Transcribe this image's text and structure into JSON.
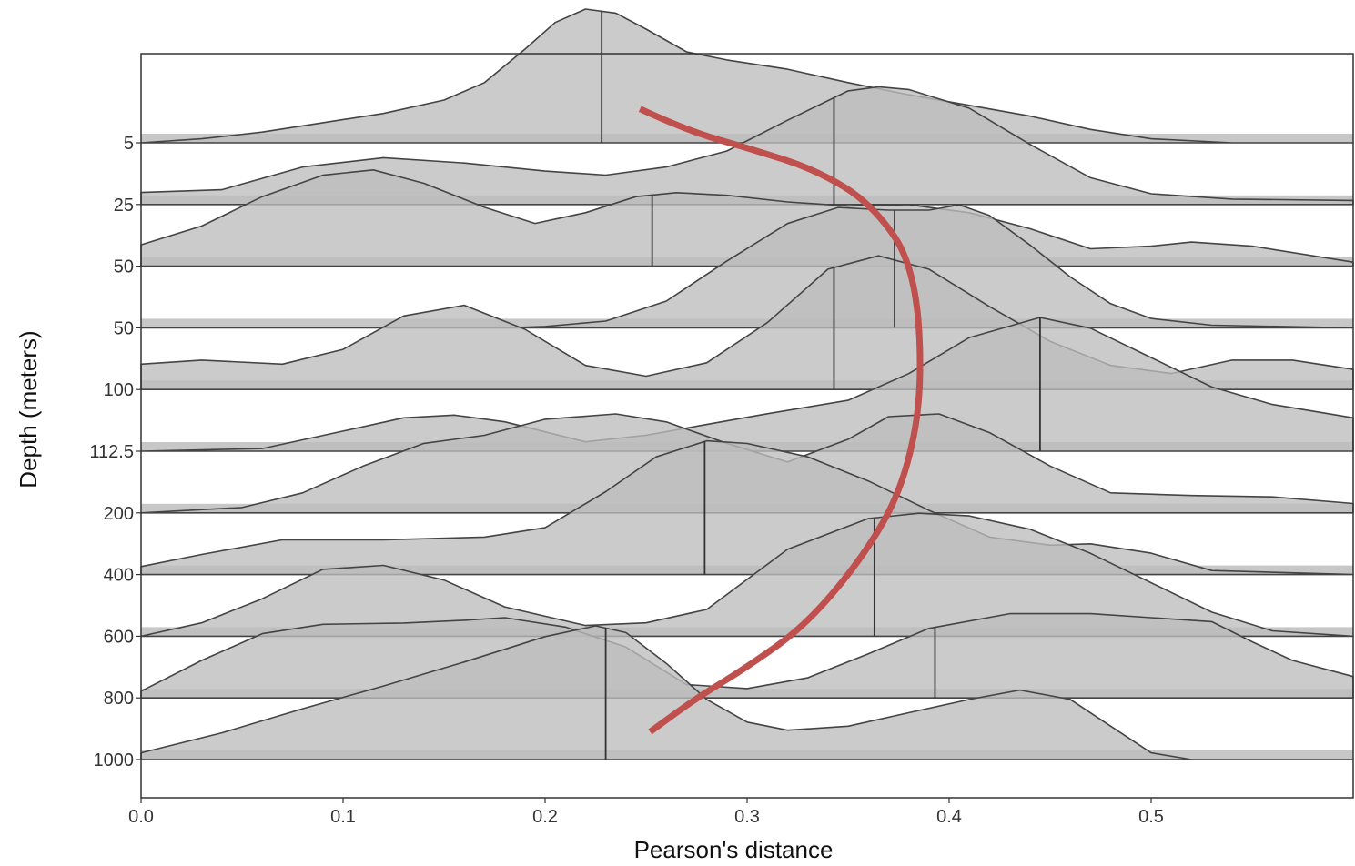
{
  "chart_data": {
    "type": "ridgeline",
    "xlabel": "Pearson's distance",
    "ylabel": "Depth (meters)",
    "xlim": [
      0.0,
      0.6
    ],
    "x_ticks": [
      "0.0",
      "0.1",
      "0.2",
      "0.3",
      "0.4",
      "0.5"
    ],
    "x_tick_values": [
      0.0,
      0.1,
      0.2,
      0.3,
      0.4,
      0.5
    ],
    "grid": false,
    "colors": {
      "fill": "#bdbdbd",
      "outline": "#444444",
      "trend": "#c0504d",
      "frame": "#333333"
    },
    "rows": [
      {
        "depth": "5",
        "median": 0.228,
        "density": [
          [
            0,
            0.0
          ],
          [
            0.03,
            0.03
          ],
          [
            0.06,
            0.08
          ],
          [
            0.09,
            0.15
          ],
          [
            0.12,
            0.22
          ],
          [
            0.15,
            0.32
          ],
          [
            0.17,
            0.45
          ],
          [
            0.19,
            0.7
          ],
          [
            0.205,
            0.9
          ],
          [
            0.22,
            1.0
          ],
          [
            0.235,
            0.97
          ],
          [
            0.25,
            0.85
          ],
          [
            0.27,
            0.68
          ],
          [
            0.29,
            0.62
          ],
          [
            0.32,
            0.55
          ],
          [
            0.35,
            0.45
          ],
          [
            0.38,
            0.36
          ],
          [
            0.41,
            0.28
          ],
          [
            0.44,
            0.2
          ],
          [
            0.47,
            0.1
          ],
          [
            0.5,
            0.03
          ],
          [
            0.54,
            0.0
          ],
          [
            0.6,
            0.0
          ]
        ]
      },
      {
        "depth": "25",
        "median": 0.343,
        "density": [
          [
            0,
            0.09
          ],
          [
            0.04,
            0.11
          ],
          [
            0.08,
            0.28
          ],
          [
            0.12,
            0.35
          ],
          [
            0.16,
            0.31
          ],
          [
            0.2,
            0.25
          ],
          [
            0.23,
            0.22
          ],
          [
            0.26,
            0.28
          ],
          [
            0.29,
            0.4
          ],
          [
            0.32,
            0.63
          ],
          [
            0.35,
            0.85
          ],
          [
            0.365,
            0.88
          ],
          [
            0.38,
            0.86
          ],
          [
            0.41,
            0.72
          ],
          [
            0.44,
            0.45
          ],
          [
            0.47,
            0.2
          ],
          [
            0.5,
            0.08
          ],
          [
            0.54,
            0.04
          ],
          [
            0.6,
            0.03
          ]
        ]
      },
      {
        "depth": "50",
        "median": 0.253,
        "density": [
          [
            0,
            0.16
          ],
          [
            0.03,
            0.3
          ],
          [
            0.06,
            0.52
          ],
          [
            0.09,
            0.68
          ],
          [
            0.115,
            0.72
          ],
          [
            0.14,
            0.62
          ],
          [
            0.17,
            0.44
          ],
          [
            0.195,
            0.32
          ],
          [
            0.22,
            0.4
          ],
          [
            0.245,
            0.52
          ],
          [
            0.265,
            0.55
          ],
          [
            0.29,
            0.53
          ],
          [
            0.32,
            0.48
          ],
          [
            0.35,
            0.45
          ],
          [
            0.38,
            0.46
          ],
          [
            0.41,
            0.4
          ],
          [
            0.44,
            0.28
          ],
          [
            0.47,
            0.13
          ],
          [
            0.5,
            0.15
          ],
          [
            0.52,
            0.18
          ],
          [
            0.55,
            0.15
          ],
          [
            0.6,
            0.03
          ]
        ]
      },
      {
        "depth": "50",
        "median": 0.373,
        "density": [
          [
            0,
            0.0
          ],
          [
            0.18,
            0.0
          ],
          [
            0.2,
            0.01
          ],
          [
            0.23,
            0.05
          ],
          [
            0.26,
            0.2
          ],
          [
            0.29,
            0.5
          ],
          [
            0.32,
            0.78
          ],
          [
            0.345,
            0.9
          ],
          [
            0.37,
            0.88
          ],
          [
            0.39,
            0.88
          ],
          [
            0.405,
            0.92
          ],
          [
            0.42,
            0.84
          ],
          [
            0.44,
            0.62
          ],
          [
            0.46,
            0.38
          ],
          [
            0.48,
            0.18
          ],
          [
            0.5,
            0.07
          ],
          [
            0.53,
            0.02
          ],
          [
            0.6,
            0.0
          ]
        ]
      },
      {
        "depth": "100",
        "median": 0.343,
        "density": [
          [
            0,
            0.19
          ],
          [
            0.03,
            0.22
          ],
          [
            0.07,
            0.19
          ],
          [
            0.1,
            0.3
          ],
          [
            0.13,
            0.55
          ],
          [
            0.16,
            0.63
          ],
          [
            0.19,
            0.45
          ],
          [
            0.22,
            0.18
          ],
          [
            0.25,
            0.1
          ],
          [
            0.28,
            0.2
          ],
          [
            0.31,
            0.5
          ],
          [
            0.34,
            0.9
          ],
          [
            0.365,
            1.0
          ],
          [
            0.39,
            0.9
          ],
          [
            0.42,
            0.62
          ],
          [
            0.45,
            0.36
          ],
          [
            0.48,
            0.18
          ],
          [
            0.51,
            0.12
          ],
          [
            0.54,
            0.22
          ],
          [
            0.57,
            0.22
          ],
          [
            0.6,
            0.15
          ]
        ]
      },
      {
        "depth": "112.5",
        "median": 0.445,
        "density": [
          [
            0,
            0.0
          ],
          [
            0.06,
            0.02
          ],
          [
            0.1,
            0.15
          ],
          [
            0.13,
            0.25
          ],
          [
            0.155,
            0.27
          ],
          [
            0.18,
            0.22
          ],
          [
            0.22,
            0.07
          ],
          [
            0.25,
            0.12
          ],
          [
            0.28,
            0.2
          ],
          [
            0.31,
            0.28
          ],
          [
            0.35,
            0.38
          ],
          [
            0.38,
            0.58
          ],
          [
            0.41,
            0.85
          ],
          [
            0.445,
            1.0
          ],
          [
            0.47,
            0.92
          ],
          [
            0.5,
            0.7
          ],
          [
            0.53,
            0.48
          ],
          [
            0.56,
            0.35
          ],
          [
            0.6,
            0.25
          ]
        ]
      },
      {
        "depth": "200",
        "median": null,
        "density": [
          [
            0,
            0.0
          ],
          [
            0.05,
            0.04
          ],
          [
            0.08,
            0.15
          ],
          [
            0.11,
            0.35
          ],
          [
            0.14,
            0.52
          ],
          [
            0.17,
            0.58
          ],
          [
            0.2,
            0.7
          ],
          [
            0.235,
            0.74
          ],
          [
            0.26,
            0.68
          ],
          [
            0.29,
            0.52
          ],
          [
            0.32,
            0.38
          ],
          [
            0.35,
            0.55
          ],
          [
            0.37,
            0.72
          ],
          [
            0.395,
            0.74
          ],
          [
            0.42,
            0.6
          ],
          [
            0.45,
            0.35
          ],
          [
            0.48,
            0.15
          ],
          [
            0.52,
            0.13
          ],
          [
            0.56,
            0.12
          ],
          [
            0.6,
            0.07
          ]
        ]
      },
      {
        "depth": "400",
        "median": 0.279,
        "density": [
          [
            0,
            0.06
          ],
          [
            0.03,
            0.15
          ],
          [
            0.07,
            0.26
          ],
          [
            0.12,
            0.26
          ],
          [
            0.17,
            0.28
          ],
          [
            0.2,
            0.35
          ],
          [
            0.23,
            0.62
          ],
          [
            0.255,
            0.88
          ],
          [
            0.28,
            1.0
          ],
          [
            0.3,
            0.98
          ],
          [
            0.33,
            0.88
          ],
          [
            0.36,
            0.7
          ],
          [
            0.39,
            0.48
          ],
          [
            0.42,
            0.28
          ],
          [
            0.45,
            0.22
          ],
          [
            0.47,
            0.23
          ],
          [
            0.5,
            0.16
          ],
          [
            0.53,
            0.03
          ],
          [
            0.6,
            0.0
          ]
        ]
      },
      {
        "depth": "600",
        "median": 0.363,
        "density": [
          [
            0,
            0.0
          ],
          [
            0.03,
            0.1
          ],
          [
            0.06,
            0.28
          ],
          [
            0.09,
            0.5
          ],
          [
            0.12,
            0.53
          ],
          [
            0.15,
            0.42
          ],
          [
            0.18,
            0.22
          ],
          [
            0.22,
            0.08
          ],
          [
            0.25,
            0.1
          ],
          [
            0.28,
            0.2
          ],
          [
            0.32,
            0.65
          ],
          [
            0.36,
            0.88
          ],
          [
            0.385,
            0.92
          ],
          [
            0.41,
            0.9
          ],
          [
            0.44,
            0.8
          ],
          [
            0.47,
            0.62
          ],
          [
            0.5,
            0.4
          ],
          [
            0.53,
            0.18
          ],
          [
            0.56,
            0.04
          ],
          [
            0.6,
            0.0
          ]
        ]
      },
      {
        "depth": "800",
        "median": 0.393,
        "density": [
          [
            0,
            0.05
          ],
          [
            0.03,
            0.28
          ],
          [
            0.06,
            0.48
          ],
          [
            0.09,
            0.55
          ],
          [
            0.13,
            0.56
          ],
          [
            0.16,
            0.58
          ],
          [
            0.18,
            0.6
          ],
          [
            0.21,
            0.53
          ],
          [
            0.24,
            0.38
          ],
          [
            0.27,
            0.1
          ],
          [
            0.3,
            0.07
          ],
          [
            0.33,
            0.15
          ],
          [
            0.36,
            0.33
          ],
          [
            0.39,
            0.52
          ],
          [
            0.43,
            0.63
          ],
          [
            0.47,
            0.63
          ],
          [
            0.5,
            0.6
          ],
          [
            0.53,
            0.57
          ],
          [
            0.55,
            0.42
          ],
          [
            0.57,
            0.28
          ],
          [
            0.6,
            0.16
          ]
        ]
      },
      {
        "depth": "1000",
        "median": 0.23,
        "density": [
          [
            0,
            0.05
          ],
          [
            0.04,
            0.2
          ],
          [
            0.08,
            0.38
          ],
          [
            0.12,
            0.55
          ],
          [
            0.16,
            0.73
          ],
          [
            0.2,
            0.92
          ],
          [
            0.225,
            1.0
          ],
          [
            0.24,
            0.95
          ],
          [
            0.26,
            0.72
          ],
          [
            0.28,
            0.45
          ],
          [
            0.3,
            0.28
          ],
          [
            0.32,
            0.22
          ],
          [
            0.35,
            0.25
          ],
          [
            0.38,
            0.35
          ],
          [
            0.41,
            0.45
          ],
          [
            0.435,
            0.52
          ],
          [
            0.46,
            0.45
          ],
          [
            0.48,
            0.25
          ],
          [
            0.5,
            0.05
          ],
          [
            0.52,
            0.0
          ],
          [
            0.6,
            0.0
          ]
        ]
      }
    ],
    "trend_points": [
      [
        0.247,
        -0.55
      ],
      [
        0.27,
        -0.2
      ],
      [
        0.302,
        0.1
      ],
      [
        0.335,
        0.45
      ],
      [
        0.362,
        1.0
      ],
      [
        0.383,
        2.0
      ],
      [
        0.387,
        4.0
      ],
      [
        0.378,
        5.5
      ],
      [
        0.36,
        6.6
      ],
      [
        0.33,
        7.8
      ],
      [
        0.3,
        8.5
      ],
      [
        0.275,
        9.0
      ],
      [
        0.252,
        9.55
      ]
    ]
  }
}
